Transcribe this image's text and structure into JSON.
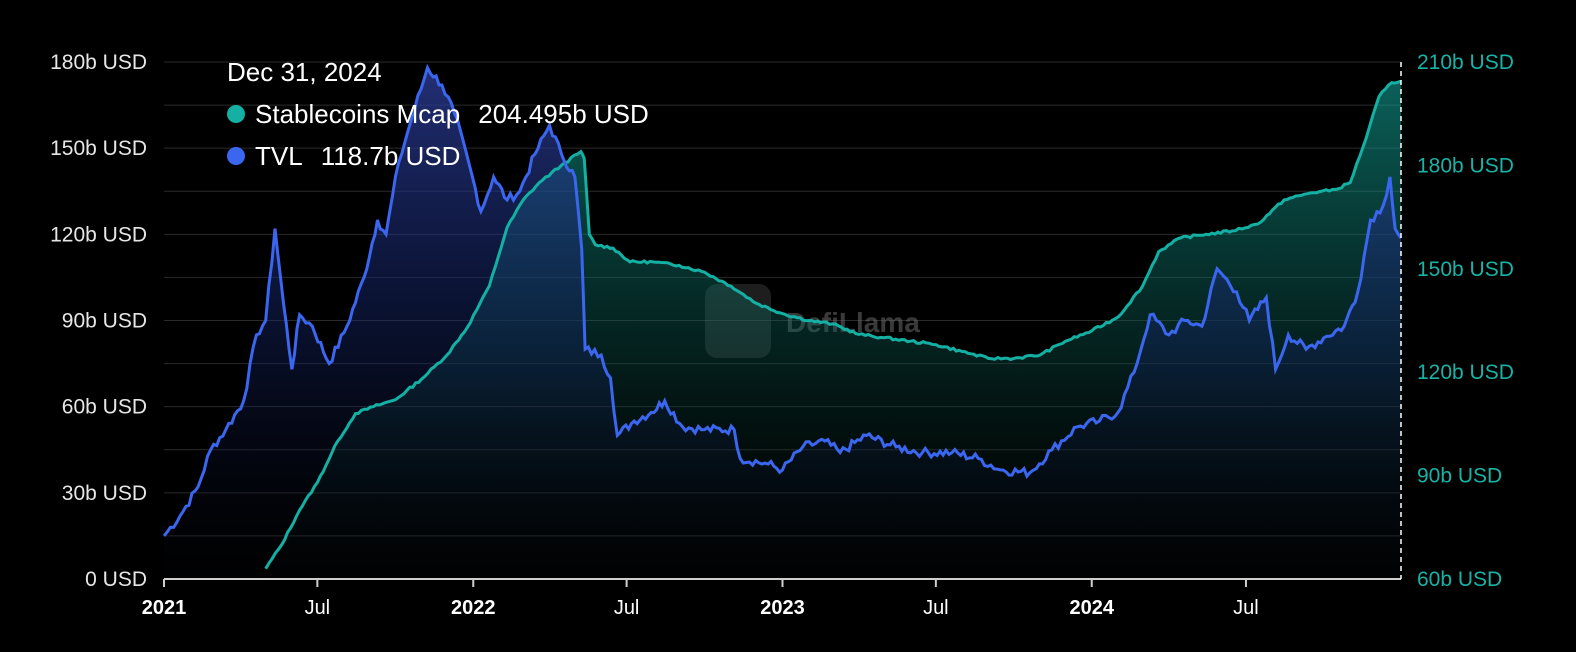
{
  "tooltip": {
    "date": "Dec 31, 2024",
    "items": [
      {
        "name": "Stablecoins Mcap",
        "value": "204.495b USD",
        "color": "#14b0a4"
      },
      {
        "name": "TVL",
        "value": "118.7b USD",
        "color": "#3b66f0"
      }
    ]
  },
  "watermark": "DefiLlama",
  "colors": {
    "stablecoins": "#14b0a4",
    "tvl": "#3b66f0",
    "grid": "#2a2a2a",
    "left_axis": "#e6e6e6",
    "right_axis": "#19b2a6"
  },
  "chart_data": {
    "type": "area",
    "x_range": [
      "2021-01-01",
      "2024-12-31"
    ],
    "x_ticks": [
      {
        "date": "2021-01-01",
        "label": "2021",
        "year": true
      },
      {
        "date": "2021-07-01",
        "label": "Jul",
        "year": false
      },
      {
        "date": "2022-01-01",
        "label": "2022",
        "year": true
      },
      {
        "date": "2022-07-01",
        "label": "Jul",
        "year": false
      },
      {
        "date": "2023-01-01",
        "label": "2023",
        "year": true
      },
      {
        "date": "2023-07-01",
        "label": "Jul",
        "year": false
      },
      {
        "date": "2024-01-01",
        "label": "2024",
        "year": true
      },
      {
        "date": "2024-07-01",
        "label": "Jul",
        "year": false
      }
    ],
    "left_axis": {
      "range": [
        0,
        180
      ],
      "ticks": [
        {
          "value": 0,
          "label": "0 USD"
        },
        {
          "value": 30,
          "label": "30b USD"
        },
        {
          "value": 60,
          "label": "60b USD"
        },
        {
          "value": 90,
          "label": "90b USD"
        },
        {
          "value": 120,
          "label": "120b USD"
        },
        {
          "value": 150,
          "label": "150b USD"
        },
        {
          "value": 180,
          "label": "180b USD"
        }
      ]
    },
    "right_axis": {
      "range": [
        60,
        210
      ],
      "ticks": [
        {
          "value": 60,
          "label": "60b USD"
        },
        {
          "value": 90,
          "label": "90b USD"
        },
        {
          "value": 120,
          "label": "120b USD"
        },
        {
          "value": 150,
          "label": "150b USD"
        },
        {
          "value": 180,
          "label": "180b USD"
        },
        {
          "value": 210,
          "label": "210b USD"
        }
      ]
    },
    "series": [
      {
        "name": "TVL",
        "axis": "left",
        "unit": "b USD",
        "points": [
          [
            "2021-01-01",
            15
          ],
          [
            "2021-01-20",
            22
          ],
          [
            "2021-02-10",
            32
          ],
          [
            "2021-02-25",
            45
          ],
          [
            "2021-03-15",
            52
          ],
          [
            "2021-04-05",
            62
          ],
          [
            "2021-04-20",
            85
          ],
          [
            "2021-05-01",
            90
          ],
          [
            "2021-05-12",
            122
          ],
          [
            "2021-05-22",
            96
          ],
          [
            "2021-06-01",
            73
          ],
          [
            "2021-06-10",
            92
          ],
          [
            "2021-06-25",
            88
          ],
          [
            "2021-07-15",
            75
          ],
          [
            "2021-08-05",
            88
          ],
          [
            "2021-08-25",
            105
          ],
          [
            "2021-09-10",
            125
          ],
          [
            "2021-09-20",
            120
          ],
          [
            "2021-10-05",
            145
          ],
          [
            "2021-10-20",
            160
          ],
          [
            "2021-11-08",
            178
          ],
          [
            "2021-11-25",
            172
          ],
          [
            "2021-12-10",
            162
          ],
          [
            "2021-12-31",
            140
          ],
          [
            "2022-01-10",
            128
          ],
          [
            "2022-01-25",
            140
          ],
          [
            "2022-02-10",
            132
          ],
          [
            "2022-02-25",
            135
          ],
          [
            "2022-03-15",
            148
          ],
          [
            "2022-04-01",
            158
          ],
          [
            "2022-04-15",
            148
          ],
          [
            "2022-05-01",
            140
          ],
          [
            "2022-05-09",
            115
          ],
          [
            "2022-05-13",
            80
          ],
          [
            "2022-06-01",
            78
          ],
          [
            "2022-06-12",
            70
          ],
          [
            "2022-06-20",
            50
          ],
          [
            "2022-07-10",
            55
          ],
          [
            "2022-07-30",
            58
          ],
          [
            "2022-08-15",
            62
          ],
          [
            "2022-09-05",
            53
          ],
          [
            "2022-10-01",
            52
          ],
          [
            "2022-11-05",
            52
          ],
          [
            "2022-11-12",
            42
          ],
          [
            "2022-12-15",
            40
          ],
          [
            "2023-01-01",
            38
          ],
          [
            "2023-01-25",
            46
          ],
          [
            "2023-02-20",
            48
          ],
          [
            "2023-03-10",
            44
          ],
          [
            "2023-04-10",
            50
          ],
          [
            "2023-05-15",
            46
          ],
          [
            "2023-06-15",
            44
          ],
          [
            "2023-07-20",
            44
          ],
          [
            "2023-08-20",
            42
          ],
          [
            "2023-09-15",
            38
          ],
          [
            "2023-10-20",
            37
          ],
          [
            "2023-11-15",
            45
          ],
          [
            "2023-12-15",
            53
          ],
          [
            "2024-01-10",
            55
          ],
          [
            "2024-02-01",
            58
          ],
          [
            "2024-02-20",
            72
          ],
          [
            "2024-03-10",
            92
          ],
          [
            "2024-04-01",
            85
          ],
          [
            "2024-04-20",
            90
          ],
          [
            "2024-05-10",
            88
          ],
          [
            "2024-05-28",
            108
          ],
          [
            "2024-06-20",
            100
          ],
          [
            "2024-07-05",
            90
          ],
          [
            "2024-07-25",
            98
          ],
          [
            "2024-08-05",
            73
          ],
          [
            "2024-08-20",
            85
          ],
          [
            "2024-09-10",
            80
          ],
          [
            "2024-10-01",
            84
          ],
          [
            "2024-10-25",
            88
          ],
          [
            "2024-11-10",
            100
          ],
          [
            "2024-11-25",
            125
          ],
          [
            "2024-12-10",
            130
          ],
          [
            "2024-12-18",
            140
          ],
          [
            "2024-12-24",
            122
          ],
          [
            "2024-12-31",
            118.7
          ]
        ]
      },
      {
        "name": "Stablecoins Mcap",
        "axis": "right",
        "unit": "b USD",
        "points": [
          [
            "2021-05-01",
            63
          ],
          [
            "2021-05-20",
            70
          ],
          [
            "2021-06-10",
            80
          ],
          [
            "2021-07-01",
            88
          ],
          [
            "2021-07-25",
            100
          ],
          [
            "2021-08-15",
            108
          ],
          [
            "2021-09-05",
            110
          ],
          [
            "2021-10-01",
            112
          ],
          [
            "2021-11-01",
            118
          ],
          [
            "2021-12-01",
            125
          ],
          [
            "2021-12-25",
            133
          ],
          [
            "2022-01-20",
            145
          ],
          [
            "2022-02-10",
            162
          ],
          [
            "2022-03-01",
            170
          ],
          [
            "2022-03-20",
            175
          ],
          [
            "2022-04-15",
            180
          ],
          [
            "2022-05-08",
            184
          ],
          [
            "2022-05-12",
            182
          ],
          [
            "2022-05-18",
            160
          ],
          [
            "2022-05-25",
            157
          ],
          [
            "2022-06-15",
            156
          ],
          [
            "2022-07-05",
            152
          ],
          [
            "2022-08-01",
            152
          ],
          [
            "2022-09-01",
            151
          ],
          [
            "2022-10-01",
            149
          ],
          [
            "2022-11-01",
            145
          ],
          [
            "2022-12-01",
            140
          ],
          [
            "2023-01-01",
            137
          ],
          [
            "2023-02-01",
            135
          ],
          [
            "2023-03-01",
            134
          ],
          [
            "2023-04-01",
            131
          ],
          [
            "2023-05-01",
            130
          ],
          [
            "2023-06-01",
            129
          ],
          [
            "2023-07-01",
            128
          ],
          [
            "2023-08-01",
            126
          ],
          [
            "2023-09-01",
            124
          ],
          [
            "2023-10-01",
            124
          ],
          [
            "2023-11-01",
            125
          ],
          [
            "2023-12-01",
            129
          ],
          [
            "2024-01-01",
            132
          ],
          [
            "2024-02-01",
            136
          ],
          [
            "2024-03-01",
            145
          ],
          [
            "2024-03-20",
            155
          ],
          [
            "2024-04-15",
            159
          ],
          [
            "2024-05-15",
            160
          ],
          [
            "2024-06-15",
            161
          ],
          [
            "2024-07-15",
            163
          ],
          [
            "2024-08-15",
            170
          ],
          [
            "2024-09-15",
            172
          ],
          [
            "2024-10-15",
            173
          ],
          [
            "2024-11-01",
            175
          ],
          [
            "2024-11-20",
            188
          ],
          [
            "2024-12-05",
            200
          ],
          [
            "2024-12-20",
            204
          ],
          [
            "2024-12-31",
            204.495
          ]
        ]
      }
    ]
  }
}
